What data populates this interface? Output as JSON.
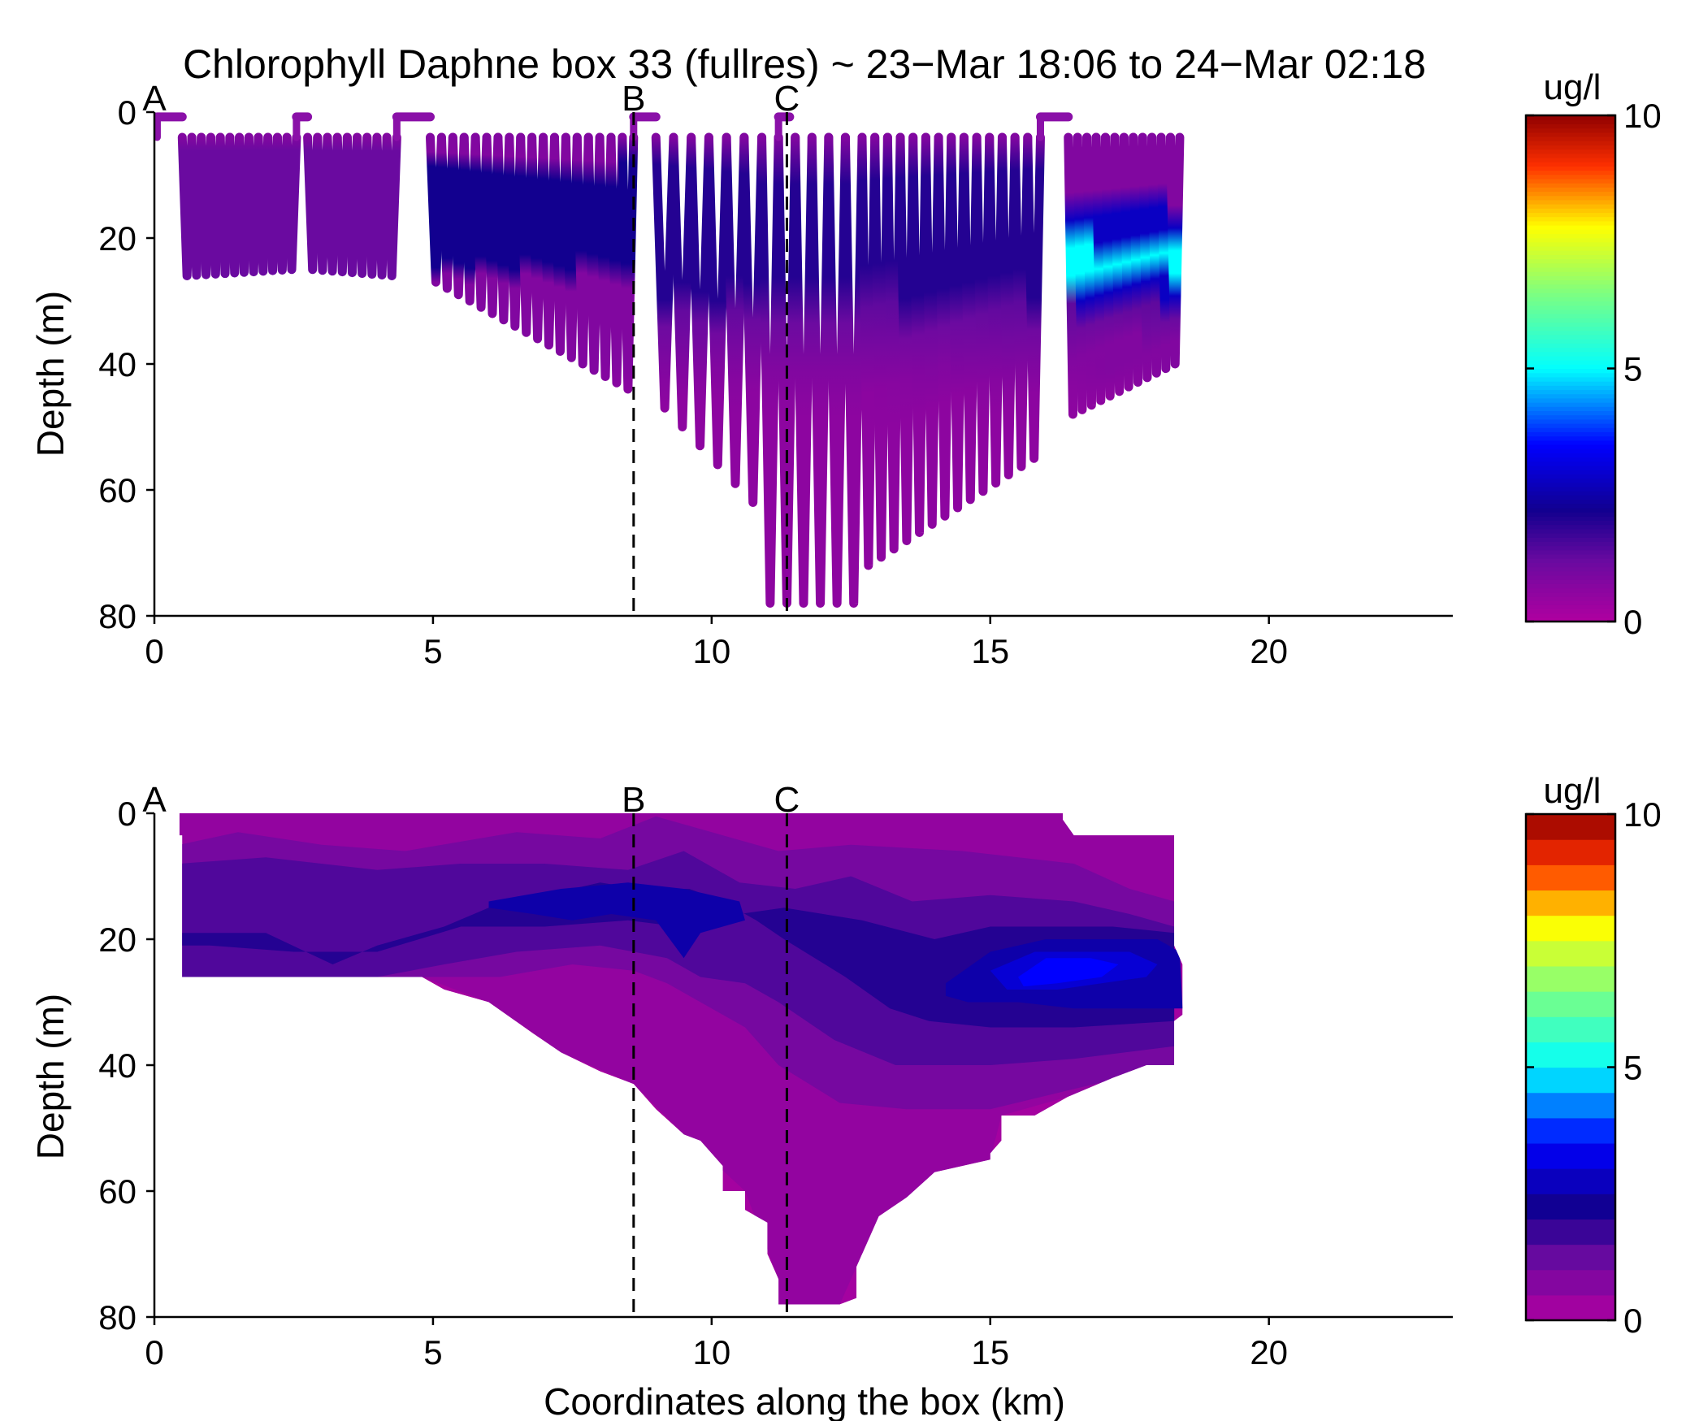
{
  "figure": {
    "title": "Chlorophyll Daphne box 33 (fullres) ~ 23−Mar 18:06 to 24−Mar 02:18",
    "xlabel": "Coordinates along the box (km)"
  },
  "colors": {
    "axis": "#000000",
    "background": "#ffffff",
    "jet": [
      "#00008f",
      "#0000ff",
      "#00ffff",
      "#ffff00",
      "#ff0000",
      "#800000"
    ],
    "dark": "#7a0a9c"
  },
  "chart_data": [
    {
      "type": "scatter",
      "panel": "top",
      "description_kind": "glider yo-yo section colored by chlorophyll",
      "xlabel": "",
      "ylabel": "Depth (m)",
      "xlim": [
        0,
        23.3
      ],
      "ylim": [
        80,
        0
      ],
      "xticks": [
        0,
        5,
        10,
        15,
        20
      ],
      "yticks": [
        0,
        20,
        40,
        60,
        80
      ],
      "grid": false,
      "colorbar": {
        "label": "ug/l",
        "min": 0,
        "max": 10,
        "ticks": [
          0,
          5,
          10
        ],
        "continuous": true
      },
      "markers": [
        {
          "label": "A",
          "x": 0.0,
          "line": false
        },
        {
          "label": "B",
          "x": 8.6,
          "line": true
        },
        {
          "label": "C",
          "x": 11.35,
          "line": true
        }
      ],
      "surface_segments": [
        {
          "x0": 0.05,
          "x1": 0.5,
          "depth": 0.5
        },
        {
          "x0": 2.55,
          "x1": 2.75,
          "depth": 0.5
        },
        {
          "x0": 4.35,
          "x1": 4.95,
          "depth": 0.5
        },
        {
          "x0": 8.6,
          "x1": 9.0,
          "depth": 0.5
        },
        {
          "x0": 11.2,
          "x1": 11.4,
          "depth": 0.5
        },
        {
          "x0": 15.9,
          "x1": 16.4,
          "depth": 0.5
        }
      ],
      "profile_groups": [
        {
          "x_start": 0.5,
          "x_end": 2.55,
          "count": 12,
          "top": 4,
          "depth_start": 26,
          "depth_end": 25
        },
        {
          "x_start": 2.75,
          "x_end": 4.35,
          "count": 9,
          "top": 4,
          "depth_start": 25,
          "depth_end": 26
        },
        {
          "x_start": 4.95,
          "x_end": 8.6,
          "count": 18,
          "top": 4,
          "depth_start": 27,
          "depth_end": 44
        },
        {
          "x_start": 9.0,
          "x_end": 10.9,
          "count": 6,
          "top": 4,
          "depth_start": 47,
          "depth_end": 62
        },
        {
          "x_start": 10.9,
          "x_end": 12.7,
          "count": 6,
          "top": 4,
          "depth_start": 78,
          "depth_end": 78
        },
        {
          "x_start": 12.7,
          "x_end": 15.9,
          "count": 14,
          "top": 4,
          "depth_start": 72,
          "depth_end": 55
        },
        {
          "x_start": 16.4,
          "x_end": 18.4,
          "count": 12,
          "top": 4,
          "depth_start": 48,
          "depth_end": 40
        }
      ],
      "chlorophyll_layers": [
        {
          "x0": 0.5,
          "x1": 4.35,
          "depth_top": 5,
          "depth_bottom": 26,
          "value": 1.2
        },
        {
          "x0": 4.95,
          "x1": 9.0,
          "depth_top": 8,
          "depth_bottom": 25,
          "value": 2.2
        },
        {
          "x0": 9.0,
          "x1": 15.9,
          "depth_top": 8,
          "depth_bottom": 40,
          "value": 2.0
        },
        {
          "x0": 16.4,
          "x1": 18.4,
          "depth_top": 15,
          "depth_bottom": 35,
          "value": 2.8
        },
        {
          "x0": 16.4,
          "x1": 18.4,
          "depth_top": 21,
          "depth_bottom": 26,
          "value": 5.0
        }
      ]
    },
    {
      "type": "heatmap",
      "panel": "bottom",
      "description_kind": "filled contour of interpolated chlorophyll",
      "xlabel": "Coordinates along the box (km)",
      "ylabel": "Depth (m)",
      "xlim": [
        0,
        23.3
      ],
      "ylim": [
        80,
        0
      ],
      "xticks": [
        0,
        5,
        10,
        15,
        20
      ],
      "yticks": [
        0,
        20,
        40,
        60,
        80
      ],
      "grid": false,
      "colorbar": {
        "label": "ug/l",
        "min": 0,
        "max": 10,
        "ticks": [
          0,
          5,
          10
        ],
        "levels": 20
      },
      "markers": [
        {
          "label": "A",
          "x": 0.0,
          "line": false
        },
        {
          "label": "B",
          "x": 8.6,
          "line": true
        },
        {
          "label": "C",
          "x": 11.35,
          "line": true
        }
      ],
      "domain_top": [
        [
          0.0,
          3.5
        ],
        [
          0.45,
          3.5
        ],
        [
          0.45,
          0
        ],
        [
          16.3,
          0
        ],
        [
          16.3,
          1
        ],
        [
          16.5,
          3.5
        ],
        [
          18.3,
          3.5
        ]
      ],
      "domain_bottom": [
        [
          18.3,
          3.5
        ],
        [
          18.3,
          21
        ],
        [
          18.45,
          24
        ],
        [
          18.45,
          32
        ],
        [
          18.3,
          33
        ],
        [
          18.3,
          40
        ],
        [
          17.8,
          40
        ],
        [
          17.2,
          42
        ],
        [
          16.4,
          45
        ],
        [
          15.8,
          48
        ],
        [
          15.2,
          48
        ],
        [
          15.2,
          52
        ],
        [
          15.0,
          54
        ],
        [
          15.0,
          55
        ],
        [
          14.0,
          57
        ],
        [
          13.5,
          61
        ],
        [
          13.0,
          64
        ],
        [
          12.7,
          70
        ],
        [
          12.6,
          72
        ],
        [
          12.6,
          77
        ],
        [
          12.3,
          78
        ],
        [
          11.2,
          78
        ],
        [
          11.2,
          74
        ],
        [
          11.0,
          70
        ],
        [
          11.0,
          65
        ],
        [
          10.6,
          63
        ],
        [
          10.6,
          60
        ],
        [
          10.2,
          60
        ],
        [
          10.2,
          56
        ],
        [
          9.8,
          52
        ],
        [
          9.5,
          51
        ],
        [
          9.0,
          47
        ],
        [
          8.6,
          43
        ],
        [
          8.0,
          41
        ],
        [
          7.3,
          38
        ],
        [
          6.8,
          35
        ],
        [
          6.0,
          30
        ],
        [
          5.2,
          28
        ],
        [
          4.8,
          26
        ],
        [
          4.0,
          26
        ],
        [
          0.5,
          26
        ],
        [
          0.5,
          3.5
        ]
      ],
      "bands": [
        {
          "value": 0.5,
          "points": [
            [
              0.45,
              26
            ],
            [
              4.8,
              26
            ],
            [
              6.0,
              30
            ],
            [
              7.3,
              38
            ],
            [
              8.6,
              43
            ],
            [
              9.5,
              51
            ],
            [
              10.6,
              60
            ],
            [
              11.2,
              74
            ],
            [
              11.2,
              78
            ],
            [
              12.3,
              78
            ],
            [
              12.7,
              70
            ],
            [
              13.5,
              61
            ],
            [
              15.0,
              55
            ],
            [
              15.2,
              48
            ],
            [
              16.4,
              45
            ],
            [
              18.3,
              40
            ],
            [
              18.3,
              3.5
            ],
            [
              16.5,
              3.5
            ],
            [
              16.3,
              0
            ],
            [
              0.45,
              0
            ]
          ]
        },
        {
          "value": 1.0,
          "points": [
            [
              0.45,
              0
            ],
            [
              0.45,
              26
            ],
            [
              4.8,
              26
            ],
            [
              6.2,
              26
            ],
            [
              7.5,
              24
            ],
            [
              8.6,
              25
            ],
            [
              9.2,
              27
            ],
            [
              9.8,
              30
            ],
            [
              10.6,
              34
            ],
            [
              11.2,
              40
            ],
            [
              12.3,
              46
            ],
            [
              13.5,
              47
            ],
            [
              15.0,
              47
            ],
            [
              16.4,
              44
            ],
            [
              18.3,
              40
            ],
            [
              18.3,
              14
            ],
            [
              17.5,
              12
            ],
            [
              16.5,
              8
            ],
            [
              14.5,
              6
            ],
            [
              12.5,
              5
            ],
            [
              11.2,
              6
            ],
            [
              10.0,
              3
            ],
            [
              9.0,
              0.5
            ],
            [
              8.0,
              4
            ],
            [
              6.5,
              3
            ],
            [
              4.5,
              6
            ],
            [
              3.0,
              5
            ],
            [
              1.5,
              3
            ],
            [
              0.45,
              5
            ]
          ]
        },
        {
          "value": 1.5,
          "points": [
            [
              0.45,
              8
            ],
            [
              0.45,
              26
            ],
            [
              4.0,
              26
            ],
            [
              5.2,
              24
            ],
            [
              6.5,
              22
            ],
            [
              8.0,
              21
            ],
            [
              9.2,
              23
            ],
            [
              9.8,
              26
            ],
            [
              10.6,
              27
            ],
            [
              11.2,
              30
            ],
            [
              12.2,
              36
            ],
            [
              13.3,
              40
            ],
            [
              15.0,
              40
            ],
            [
              16.5,
              39
            ],
            [
              18.3,
              37
            ],
            [
              18.3,
              18
            ],
            [
              17.5,
              16
            ],
            [
              16.5,
              14
            ],
            [
              15.0,
              13
            ],
            [
              13.6,
              14
            ],
            [
              12.5,
              10
            ],
            [
              11.5,
              12
            ],
            [
              10.5,
              11
            ],
            [
              9.5,
              6
            ],
            [
              8.5,
              9
            ],
            [
              7.0,
              8
            ],
            [
              5.5,
              8
            ],
            [
              4.0,
              9
            ],
            [
              2.0,
              7
            ]
          ]
        },
        {
          "value": 2.0,
          "points": [
            [
              0.45,
              19
            ],
            [
              2.0,
              19
            ],
            [
              3.2,
              24
            ],
            [
              4.0,
              21
            ],
            [
              5.2,
              18
            ],
            [
              6.0,
              15
            ],
            [
              7.0,
              13
            ],
            [
              8.0,
              11
            ],
            [
              8.7,
              12
            ],
            [
              9.6,
              12
            ],
            [
              10.2,
              14
            ],
            [
              10.8,
              17
            ],
            [
              11.3,
              20
            ],
            [
              12.4,
              26
            ],
            [
              13.2,
              31
            ],
            [
              13.9,
              33
            ],
            [
              15.0,
              34
            ],
            [
              16.5,
              34
            ],
            [
              18.3,
              33
            ],
            [
              18.3,
              19
            ],
            [
              17.2,
              18
            ],
            [
              16.0,
              18
            ],
            [
              15.0,
              18
            ],
            [
              14.0,
              20
            ],
            [
              12.7,
              17
            ],
            [
              11.3,
              15
            ],
            [
              10.5,
              16
            ],
            [
              9.8,
              17
            ],
            [
              9.4,
              18
            ],
            [
              8.5,
              17
            ],
            [
              7.0,
              18
            ],
            [
              5.5,
              18
            ],
            [
              4.0,
              22
            ],
            [
              2.5,
              22
            ],
            [
              1.0,
              21
            ],
            [
              0.45,
              21
            ]
          ]
        },
        {
          "value": 2.5,
          "points": [
            [
              6.0,
              14
            ],
            [
              7.3,
              12
            ],
            [
              8.5,
              11
            ],
            [
              9.5,
              12
            ],
            [
              10.5,
              14
            ],
            [
              10.6,
              17
            ],
            [
              9.8,
              19
            ],
            [
              9.5,
              23
            ],
            [
              9.0,
              17
            ],
            [
              8.2,
              16
            ],
            [
              7.5,
              17
            ],
            [
              6.8,
              16
            ],
            [
              6.0,
              15
            ]
          ]
        },
        {
          "value": 2.5,
          "points": [
            [
              14.2,
              27
            ],
            [
              15.0,
              22
            ],
            [
              16.0,
              20
            ],
            [
              17.0,
              20
            ],
            [
              18.0,
              20
            ],
            [
              18.4,
              22
            ],
            [
              18.45,
              31
            ],
            [
              17.5,
              31
            ],
            [
              16.5,
              31
            ],
            [
              15.5,
              30
            ],
            [
              14.6,
              30
            ],
            [
              14.2,
              29
            ]
          ]
        },
        {
          "value": 3.0,
          "points": [
            [
              15.0,
              25
            ],
            [
              15.8,
              22
            ],
            [
              16.8,
              22
            ],
            [
              17.5,
              22
            ],
            [
              18.0,
              24
            ],
            [
              17.8,
              26
            ],
            [
              17.0,
              27
            ],
            [
              16.2,
              28
            ],
            [
              15.3,
              28
            ]
          ]
        },
        {
          "value": 3.5,
          "points": [
            [
              15.5,
              26
            ],
            [
              16.0,
              23
            ],
            [
              16.8,
              23
            ],
            [
              17.3,
              24
            ],
            [
              17.0,
              26
            ],
            [
              16.2,
              27
            ],
            [
              15.6,
              27.5
            ]
          ]
        }
      ]
    }
  ]
}
